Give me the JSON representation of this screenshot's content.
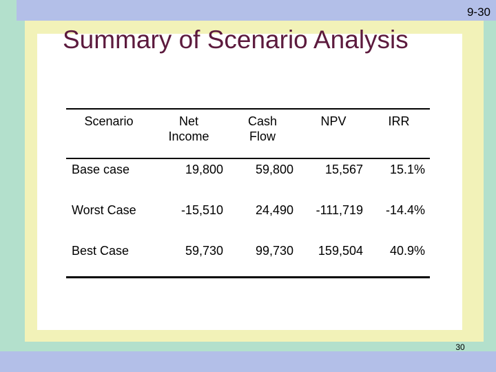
{
  "slide_label": "9-30",
  "page_number": "30",
  "title": "Summary of Scenario Analysis",
  "table": {
    "headers": {
      "scenario": "Scenario",
      "net_income": [
        "Net",
        "Income"
      ],
      "cash_flow": [
        "Cash",
        "Flow"
      ],
      "npv": "NPV",
      "irr": "IRR"
    },
    "rows": [
      {
        "scenario": "Base case",
        "net_income": "19,800",
        "cash_flow": "59,800",
        "npv": "15,567",
        "irr": "15.1%"
      },
      {
        "scenario": "Worst Case",
        "net_income": "-15,510",
        "cash_flow": "24,490",
        "npv": "-111,719",
        "irr": "-14.4%"
      },
      {
        "scenario": "Best Case",
        "net_income": "59,730",
        "cash_flow": "99,730",
        "npv": "159,504",
        "irr": "40.9%"
      }
    ]
  }
}
